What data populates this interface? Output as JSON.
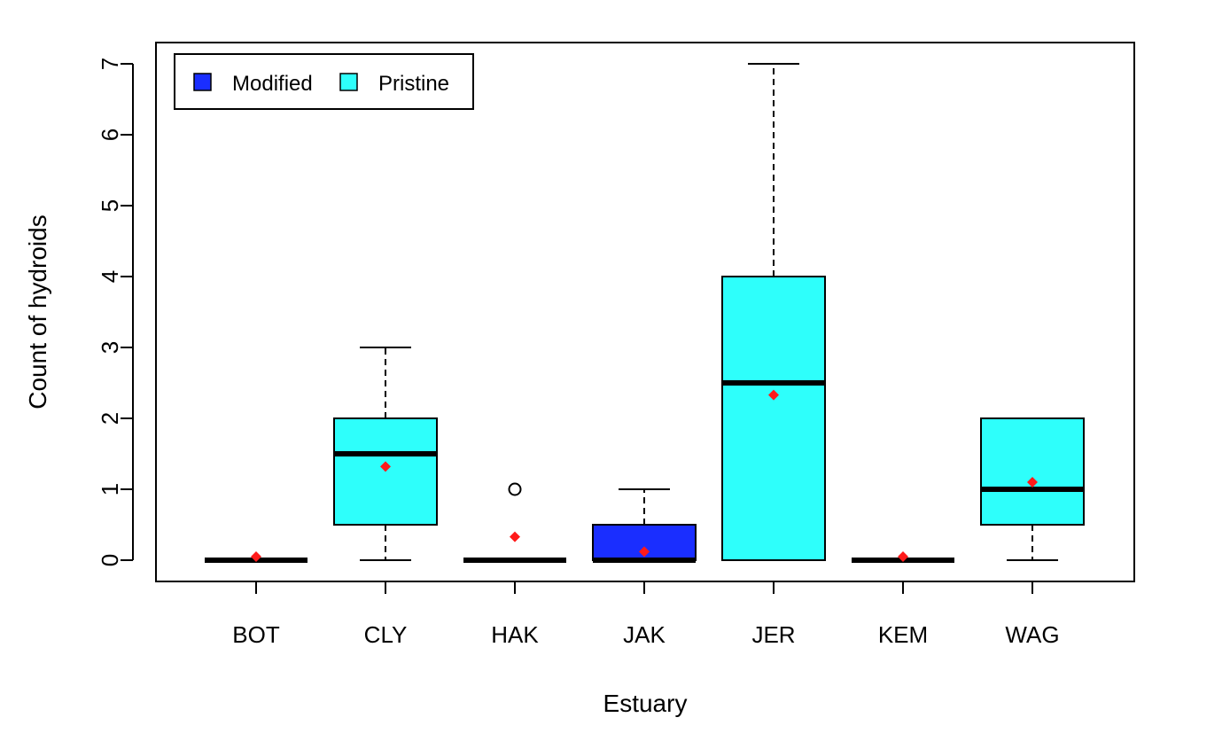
{
  "chart_data": {
    "type": "boxplot",
    "xlabel": "Estuary",
    "ylabel": "Count of hydroids",
    "ylim": [
      -0.3,
      7.3
    ],
    "yticks": [
      0,
      1,
      2,
      3,
      4,
      5,
      6,
      7
    ],
    "categories": [
      "BOT",
      "CLY",
      "HAK",
      "JAK",
      "JER",
      "KEM",
      "WAG"
    ],
    "legend": {
      "position": "top-left",
      "entries": [
        {
          "label": "Modified",
          "color": "#1a2eff"
        },
        {
          "label": "Pristine",
          "color": "#2efffb"
        }
      ]
    },
    "colors": {
      "Modified": "#1a2eff",
      "Pristine": "#2efffb",
      "mean_marker": "#ff1a1a"
    },
    "boxes": [
      {
        "category": "BOT",
        "group": "Modified",
        "min": 0,
        "q1": 0,
        "median": 0,
        "q3": 0,
        "max": 0,
        "mean": 0.05,
        "outliers": []
      },
      {
        "category": "CLY",
        "group": "Pristine",
        "min": 0,
        "q1": 0.5,
        "median": 1.5,
        "q3": 2,
        "max": 3,
        "mean": 1.32,
        "outliers": []
      },
      {
        "category": "HAK",
        "group": "Modified",
        "min": 0,
        "q1": 0,
        "median": 0,
        "q3": 0,
        "max": 0,
        "mean": 0.33,
        "outliers": [
          1
        ]
      },
      {
        "category": "JAK",
        "group": "Modified",
        "min": 0,
        "q1": 0,
        "median": 0,
        "q3": 0.5,
        "max": 1,
        "mean": 0.12,
        "outliers": []
      },
      {
        "category": "JER",
        "group": "Pristine",
        "min": 0,
        "q1": 0,
        "median": 2.5,
        "q3": 4,
        "max": 7,
        "mean": 2.33,
        "outliers": []
      },
      {
        "category": "KEM",
        "group": "Modified",
        "min": 0,
        "q1": 0,
        "median": 0,
        "q3": 0,
        "max": 0,
        "mean": 0.05,
        "outliers": []
      },
      {
        "category": "WAG",
        "group": "Pristine",
        "min": 0,
        "q1": 0.5,
        "median": 1,
        "q3": 2,
        "max": 2,
        "mean": 1.1,
        "outliers": []
      }
    ]
  }
}
